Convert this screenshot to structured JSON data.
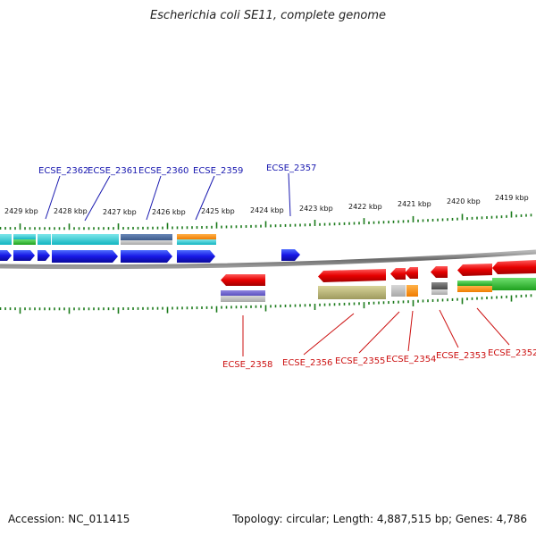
{
  "title": "Escherichia coli SE11, complete genome",
  "accession": "Accession: NC_011415",
  "topology": "Topology: circular; Length: 4,887,515 bp; Genes: 4,786",
  "colors": {
    "forward_label": "#1a1ab0",
    "reverse_label": "#cc1111",
    "tick": "#1a7a1a",
    "backbone": "#808080"
  },
  "kbp_labels": [
    "2429 kbp",
    "2428 kbp",
    "2427 kbp",
    "2426 kbp",
    "2425 kbp",
    "2424 kbp",
    "2423 kbp",
    "2422 kbp",
    "2421 kbp",
    "2420 kbp",
    "2419 kbp"
  ],
  "genes_forward": [
    "ECSE_2362",
    "ECSE_2361",
    "ECSE_2360",
    "ECSE_2359",
    "ECSE_2357"
  ],
  "genes_reverse": [
    "ECSE_2358",
    "ECSE_2356",
    "ECSE_2355",
    "ECSE_2354",
    "ECSE_2353",
    "ECSE_2352"
  ]
}
